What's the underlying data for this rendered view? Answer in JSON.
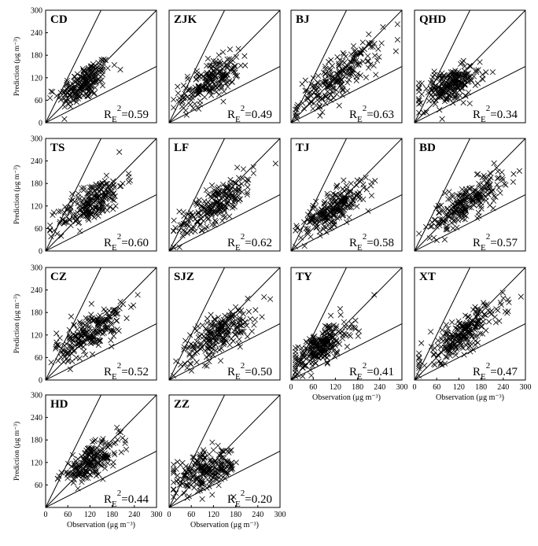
{
  "figure": {
    "ylabel": "Prediction (μg m⁻³)",
    "xlabel": "Observation (μg m⁻³)",
    "metric_label": "R",
    "metric_subscript": "E",
    "metric_superscript": "2"
  },
  "chart_data": [
    {
      "type": "scatter",
      "panel": "CD",
      "r2": "=0.59",
      "xlim": [
        0,
        300
      ],
      "ylim": [
        0,
        300
      ],
      "xticks": [],
      "yticks": [
        "0",
        "60",
        "120",
        "180",
        "240",
        "300"
      ],
      "cloud": {
        "x_center": 105,
        "x_spread": 35,
        "slope": 0.55,
        "intercept": 48,
        "noise": 24,
        "count": 200
      }
    },
    {
      "type": "scatter",
      "panel": "ZJK",
      "r2": "=0.49",
      "xlim": [
        0,
        300
      ],
      "ylim": [
        0,
        300
      ],
      "xticks": [],
      "yticks": [],
      "cloud": {
        "x_center": 110,
        "x_spread": 40,
        "slope": 0.5,
        "intercept": 55,
        "noise": 25,
        "count": 200
      }
    },
    {
      "type": "scatter",
      "panel": "BJ",
      "r2": "=0.63",
      "xlim": [
        0,
        300
      ],
      "ylim": [
        0,
        300
      ],
      "xticks": [],
      "yticks": [],
      "cloud": {
        "x_center": 130,
        "x_spread": 55,
        "slope": 0.65,
        "intercept": 38,
        "noise": 28,
        "count": 220
      }
    },
    {
      "type": "scatter",
      "panel": "QHD",
      "r2": "=0.34",
      "xlim": [
        0,
        300
      ],
      "ylim": [
        0,
        300
      ],
      "xticks": [],
      "yticks": [],
      "cloud": {
        "x_center": 95,
        "x_spread": 40,
        "slope": 0.35,
        "intercept": 65,
        "noise": 22,
        "count": 230
      }
    },
    {
      "type": "scatter",
      "panel": "TS",
      "r2": "=0.60",
      "xlim": [
        0,
        300
      ],
      "ylim": [
        0,
        300
      ],
      "xticks": [],
      "yticks": [
        "0",
        "60",
        "120",
        "180",
        "240",
        "300"
      ],
      "cloud": {
        "x_center": 125,
        "x_spread": 45,
        "slope": 0.6,
        "intercept": 55,
        "noise": 26,
        "count": 220
      }
    },
    {
      "type": "scatter",
      "panel": "LF",
      "r2": "=0.62",
      "xlim": [
        0,
        300
      ],
      "ylim": [
        0,
        300
      ],
      "xticks": [],
      "yticks": [],
      "cloud": {
        "x_center": 130,
        "x_spread": 50,
        "slope": 0.6,
        "intercept": 50,
        "noise": 24,
        "count": 220
      }
    },
    {
      "type": "scatter",
      "panel": "TJ",
      "r2": "=0.58",
      "xlim": [
        0,
        300
      ],
      "ylim": [
        0,
        300
      ],
      "xticks": [],
      "yticks": [],
      "cloud": {
        "x_center": 115,
        "x_spread": 45,
        "slope": 0.6,
        "intercept": 45,
        "noise": 22,
        "count": 230
      }
    },
    {
      "type": "scatter",
      "panel": "BD",
      "r2": "=0.57",
      "xlim": [
        0,
        300
      ],
      "ylim": [
        0,
        300
      ],
      "xticks": [],
      "yticks": [],
      "cloud": {
        "x_center": 140,
        "x_spread": 50,
        "slope": 0.6,
        "intercept": 45,
        "noise": 24,
        "count": 230
      }
    },
    {
      "type": "scatter",
      "panel": "CZ",
      "r2": "=0.52",
      "xlim": [
        0,
        300
      ],
      "ylim": [
        0,
        300
      ],
      "xticks": [],
      "yticks": [
        "0",
        "60",
        "120",
        "180",
        "240",
        "300"
      ],
      "cloud": {
        "x_center": 120,
        "x_spread": 45,
        "slope": 0.55,
        "intercept": 60,
        "noise": 26,
        "count": 220
      }
    },
    {
      "type": "scatter",
      "panel": "SJZ",
      "r2": "=0.50",
      "xlim": [
        0,
        300
      ],
      "ylim": [
        0,
        300
      ],
      "xticks": [],
      "yticks": [],
      "cloud": {
        "x_center": 135,
        "x_spread": 50,
        "slope": 0.55,
        "intercept": 50,
        "noise": 26,
        "count": 220
      }
    },
    {
      "type": "scatter",
      "panel": "TY",
      "r2": "=0.41",
      "xlim": [
        0,
        300
      ],
      "ylim": [
        0,
        300
      ],
      "xticks": [
        "0",
        "60",
        "120",
        "180",
        "240",
        "300"
      ],
      "yticks": [],
      "cloud": {
        "x_center": 80,
        "x_spread": 40,
        "slope": 0.6,
        "intercept": 40,
        "noise": 24,
        "count": 240
      }
    },
    {
      "type": "scatter",
      "panel": "XT",
      "r2": "=0.47",
      "xlim": [
        0,
        300
      ],
      "ylim": [
        0,
        300
      ],
      "xticks": [
        "0",
        "60",
        "120",
        "180",
        "240",
        "300"
      ],
      "yticks": [],
      "cloud": {
        "x_center": 130,
        "x_spread": 55,
        "slope": 0.6,
        "intercept": 45,
        "noise": 24,
        "count": 240
      }
    },
    {
      "type": "scatter",
      "panel": "HD",
      "r2": "=0.44",
      "xlim": [
        0,
        300
      ],
      "ylim": [
        0,
        300
      ],
      "xticks": [
        "0",
        "60",
        "120",
        "180",
        "240",
        "300"
      ],
      "yticks": [
        "60",
        "120",
        "180",
        "240",
        "300"
      ],
      "cloud": {
        "x_center": 120,
        "x_spread": 40,
        "slope": 0.5,
        "intercept": 60,
        "noise": 20,
        "count": 200
      }
    },
    {
      "type": "scatter",
      "panel": "ZZ",
      "r2": "=0.20",
      "xlim": [
        0,
        300
      ],
      "ylim": [
        0,
        300
      ],
      "xticks": [
        "0",
        "60",
        "120",
        "180",
        "240",
        "300"
      ],
      "yticks": [],
      "cloud": {
        "x_center": 100,
        "x_spread": 45,
        "slope": 0.25,
        "intercept": 70,
        "noise": 25,
        "count": 220
      }
    }
  ]
}
